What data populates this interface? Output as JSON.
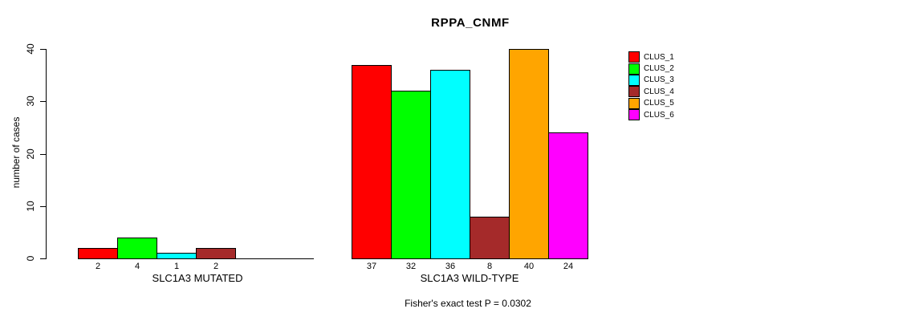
{
  "title": "RPPA_CNMF",
  "footer": "Fisher's exact test P = 0.0302",
  "chart_data": {
    "type": "bar",
    "title": "RPPA_CNMF",
    "ylabel": "number of cases",
    "xlabel": "",
    "ylim": [
      0,
      40
    ],
    "yticks": [
      "0",
      "10",
      "20",
      "30",
      "40"
    ],
    "grid": false,
    "legend_position": "right",
    "categories": [
      "CLUS_1",
      "CLUS_2",
      "CLUS_3",
      "CLUS_4",
      "CLUS_5",
      "CLUS_6"
    ],
    "colors": [
      "#FF0000",
      "#00FF00",
      "#00FFFF",
      "#A52A2A",
      "#FFA500",
      "#FF00FF"
    ],
    "groups": [
      {
        "label": "SLC1A3 MUTATED",
        "values": [
          2,
          4,
          1,
          2,
          0,
          0
        ],
        "bar_labels": [
          "2",
          "4",
          "1",
          "2",
          "",
          ""
        ]
      },
      {
        "label": "SLC1A3 WILD-TYPE",
        "values": [
          37,
          32,
          36,
          8,
          40,
          24
        ],
        "bar_labels": [
          "37",
          "32",
          "36",
          "8",
          "40",
          "24"
        ]
      }
    ],
    "annotation": "Fisher's exact test P = 0.0302"
  }
}
